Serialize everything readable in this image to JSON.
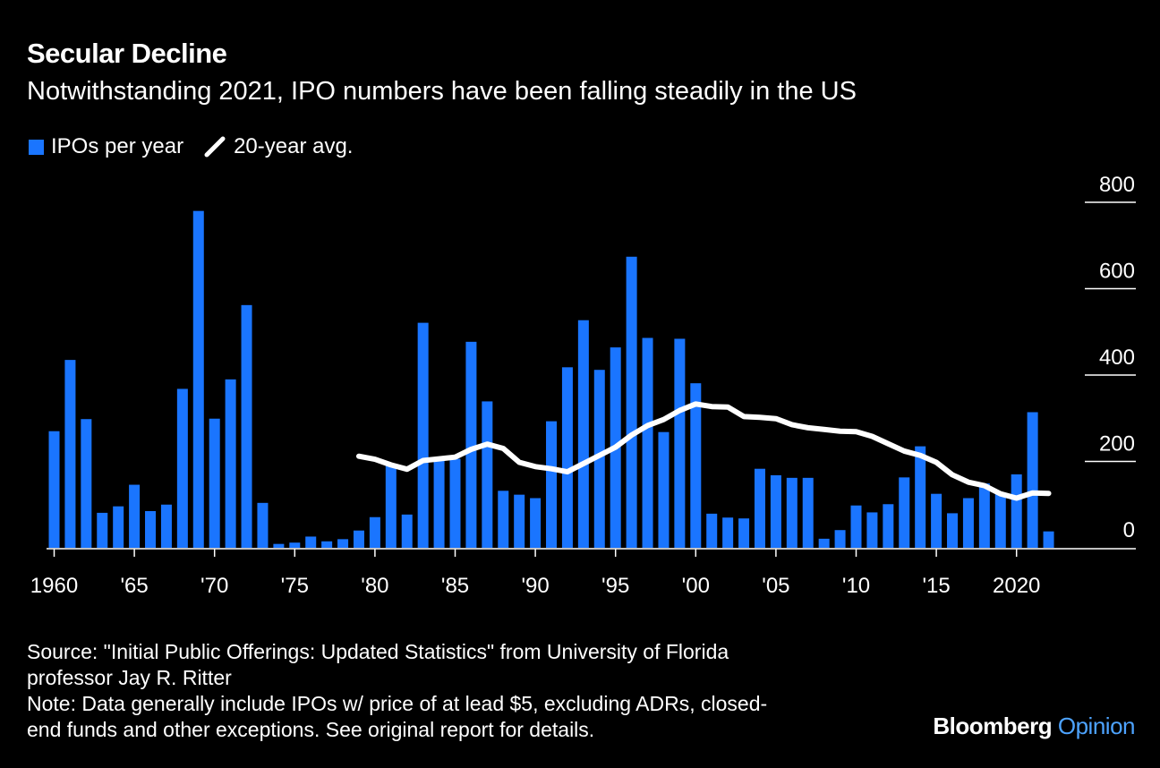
{
  "header": {
    "title": "Secular Decline",
    "subtitle": "Notwithstanding 2021, IPO numbers have been falling steadily in the US"
  },
  "legend": {
    "bars_label": "IPOs per year",
    "line_label": "20-year avg."
  },
  "colors": {
    "bars": "#1a75ff",
    "line": "#ffffff",
    "background": "#000000"
  },
  "chart_data": {
    "type": "bar",
    "title": "Secular Decline",
    "subtitle": "Notwithstanding 2021, IPO numbers have been falling steadily in the US",
    "ylim": [
      0,
      800
    ],
    "yticks": [
      "0",
      "200",
      "400",
      "600",
      "800"
    ],
    "xticks": [
      {
        "year": 1960,
        "label": "1960"
      },
      {
        "year": 1965,
        "label": "'65"
      },
      {
        "year": 1970,
        "label": "'70"
      },
      {
        "year": 1975,
        "label": "'75"
      },
      {
        "year": 1980,
        "label": "'80"
      },
      {
        "year": 1985,
        "label": "'85"
      },
      {
        "year": 1990,
        "label": "'90"
      },
      {
        "year": 1995,
        "label": "'95"
      },
      {
        "year": 2000,
        "label": "'00"
      },
      {
        "year": 2005,
        "label": "'05"
      },
      {
        "year": 2010,
        "label": "'10"
      },
      {
        "year": 2015,
        "label": "'15"
      },
      {
        "year": 2020,
        "label": "2020"
      }
    ],
    "grid": "horizontal",
    "legend_position": "top-left",
    "series": [
      {
        "name": "IPOs per year",
        "type": "bar",
        "x": [
          1960,
          1961,
          1962,
          1963,
          1964,
          1965,
          1966,
          1967,
          1968,
          1969,
          1970,
          1971,
          1972,
          1973,
          1974,
          1975,
          1976,
          1977,
          1978,
          1979,
          1980,
          1981,
          1982,
          1983,
          1984,
          1985,
          1986,
          1987,
          1988,
          1989,
          1990,
          1991,
          1992,
          1993,
          1994,
          1995,
          1996,
          1997,
          1998,
          1999,
          2000,
          2001,
          2002,
          2003,
          2004,
          2005,
          2006,
          2007,
          2008,
          2009,
          2010,
          2011,
          2012,
          2013,
          2014,
          2015,
          2016,
          2017,
          2018,
          2019,
          2020,
          2021,
          2022
        ],
        "values": [
          270,
          435,
          298,
          81,
          96,
          146,
          85,
          100,
          368,
          780,
          299,
          390,
          562,
          104,
          9,
          12,
          26,
          15,
          20,
          40,
          71,
          192,
          77,
          521,
          206,
          206,
          477,
          339,
          132,
          123,
          115,
          293,
          418,
          527,
          412,
          464,
          674,
          486,
          268,
          484,
          381,
          79,
          70,
          68,
          183,
          168,
          162,
          162,
          21,
          41,
          98,
          82,
          101,
          163,
          235,
          125,
          80,
          115,
          149,
          124,
          170,
          314,
          38
        ]
      },
      {
        "name": "20-year avg.",
        "type": "line",
        "x": [
          1979,
          1980,
          1981,
          1982,
          1983,
          1984,
          1985,
          1986,
          1987,
          1988,
          1989,
          1990,
          1991,
          1992,
          1993,
          1994,
          1995,
          1996,
          1997,
          1998,
          1999,
          2000,
          2001,
          2002,
          2003,
          2004,
          2005,
          2006,
          2007,
          2008,
          2009,
          2010,
          2011,
          2012,
          2013,
          2014,
          2015,
          2016,
          2017,
          2018,
          2019,
          2020,
          2021,
          2022
        ],
        "values": [
          212,
          205,
          192,
          182,
          202,
          206,
          210,
          228,
          240,
          230,
          198,
          188,
          183,
          176,
          195,
          214,
          233,
          261,
          283,
          297,
          318,
          333,
          327,
          326,
          304,
          302,
          299,
          285,
          278,
          274,
          270,
          269,
          258,
          241,
          224,
          214,
          198,
          169,
          152,
          144,
          125,
          115,
          127,
          126
        ]
      }
    ]
  },
  "footer": {
    "source_line1": "Source: \"Initial Public Offerings: Updated Statistics\" from University of Florida",
    "source_line2": "professor Jay R. Ritter",
    "note_line1": "Note: Data generally include IPOs w/ price of at lead $5, excluding ADRs, closed-",
    "note_line2": "end funds and other exceptions. See original report for details.",
    "logo_brand": "Bloomberg",
    "logo_section": "Opinion"
  }
}
